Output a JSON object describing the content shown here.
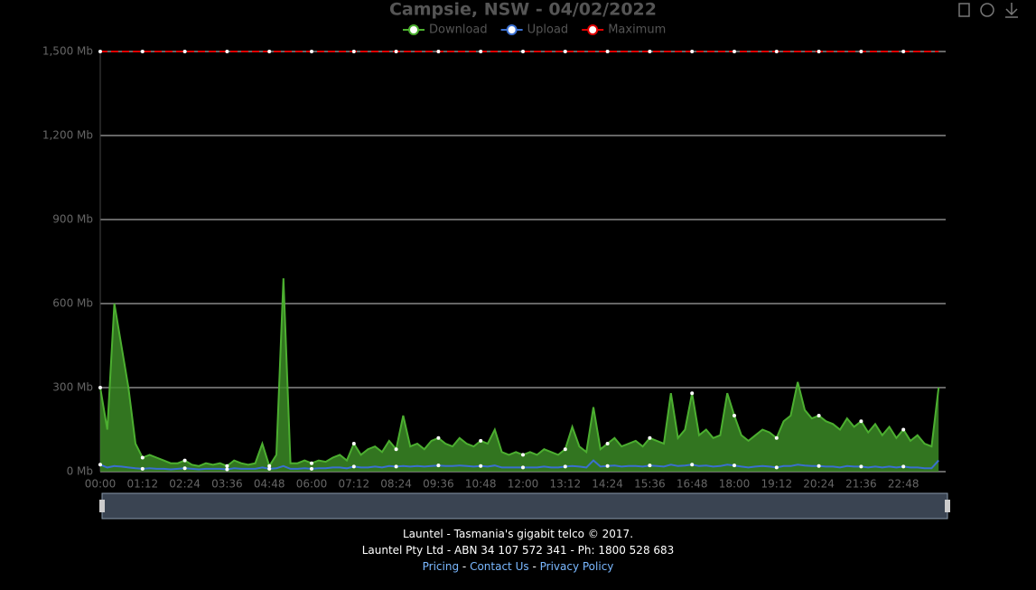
{
  "chart_data": {
    "type": "line",
    "title": "Campsie, NSW - 04/02/2022",
    "categories": [
      "00:00",
      null,
      null,
      null,
      null,
      null,
      "01:12",
      null,
      null,
      null,
      null,
      null,
      "02:24",
      null,
      null,
      null,
      null,
      null,
      "03:36",
      null,
      null,
      null,
      null,
      null,
      "04:48",
      null,
      null,
      null,
      null,
      null,
      "06:00",
      null,
      null,
      null,
      null,
      null,
      "07:12",
      null,
      null,
      null,
      null,
      null,
      "08:24",
      null,
      null,
      null,
      null,
      null,
      "09:36",
      null,
      null,
      null,
      null,
      null,
      "10:48",
      null,
      null,
      null,
      null,
      null,
      "12:00",
      null,
      null,
      null,
      null,
      null,
      "13:12",
      null,
      null,
      null,
      null,
      null,
      "14:24",
      null,
      null,
      null,
      null,
      null,
      "15:36",
      null,
      null,
      null,
      null,
      null,
      "16:48",
      null,
      null,
      null,
      null,
      null,
      "18:00",
      null,
      null,
      null,
      null,
      null,
      "19:12",
      null,
      null,
      null,
      null,
      null,
      "20:24",
      null,
      null,
      null,
      null,
      null,
      "21:36",
      null,
      null,
      null,
      null,
      null,
      "22:48",
      null,
      null,
      null,
      null,
      null
    ],
    "series": [
      {
        "name": "Download",
        "color": "#4caf30",
        "area": true,
        "values": [
          300,
          150,
          600,
          450,
          300,
          100,
          50,
          60,
          50,
          40,
          30,
          30,
          40,
          25,
          20,
          30,
          25,
          30,
          20,
          40,
          30,
          25,
          30,
          100,
          20,
          60,
          690,
          30,
          30,
          40,
          30,
          40,
          35,
          50,
          60,
          40,
          100,
          60,
          80,
          90,
          70,
          110,
          80,
          200,
          90,
          100,
          80,
          110,
          120,
          100,
          90,
          120,
          100,
          90,
          110,
          100,
          150,
          70,
          60,
          70,
          60,
          70,
          60,
          80,
          70,
          60,
          80,
          160,
          90,
          70,
          230,
          80,
          100,
          120,
          90,
          100,
          110,
          90,
          120,
          110,
          100,
          280,
          120,
          150,
          280,
          130,
          150,
          120,
          130,
          280,
          200,
          130,
          110,
          130,
          150,
          140,
          120,
          180,
          200,
          320,
          220,
          190,
          200,
          180,
          170,
          150,
          190,
          160,
          180,
          140,
          170,
          130,
          160,
          120,
          150,
          110,
          130,
          100,
          90,
          300
        ]
      },
      {
        "name": "Upload",
        "color": "#3a6fd0",
        "area": false,
        "values": [
          25,
          15,
          20,
          18,
          15,
          12,
          10,
          12,
          10,
          10,
          8,
          10,
          12,
          10,
          8,
          10,
          10,
          10,
          8,
          12,
          10,
          10,
          10,
          15,
          10,
          12,
          20,
          10,
          10,
          12,
          10,
          12,
          12,
          15,
          15,
          12,
          18,
          15,
          15,
          18,
          15,
          20,
          18,
          20,
          18,
          20,
          18,
          20,
          22,
          20,
          20,
          22,
          20,
          18,
          20,
          18,
          22,
          15,
          15,
          15,
          15,
          15,
          15,
          18,
          15,
          15,
          18,
          20,
          18,
          15,
          40,
          18,
          20,
          22,
          18,
          20,
          20,
          18,
          22,
          20,
          18,
          25,
          20,
          22,
          25,
          20,
          22,
          18,
          20,
          25,
          22,
          18,
          15,
          18,
          20,
          18,
          15,
          20,
          20,
          25,
          22,
          20,
          20,
          18,
          18,
          15,
          20,
          18,
          18,
          15,
          18,
          15,
          18,
          15,
          18,
          15,
          15,
          12,
          12,
          40
        ]
      },
      {
        "name": "Maximum",
        "color": "#e00000",
        "area": false,
        "dashed": true,
        "values": [
          1500,
          1500,
          1500,
          1500,
          1500,
          1500,
          1500,
          1500,
          1500,
          1500,
          1500,
          1500,
          1500,
          1500,
          1500,
          1500,
          1500,
          1500,
          1500,
          1500,
          1500,
          1500,
          1500,
          1500,
          1500,
          1500,
          1500,
          1500,
          1500,
          1500,
          1500,
          1500,
          1500,
          1500,
          1500,
          1500,
          1500,
          1500,
          1500,
          1500,
          1500,
          1500,
          1500,
          1500,
          1500,
          1500,
          1500,
          1500,
          1500,
          1500,
          1500,
          1500,
          1500,
          1500,
          1500,
          1500,
          1500,
          1500,
          1500,
          1500,
          1500,
          1500,
          1500,
          1500,
          1500,
          1500,
          1500,
          1500,
          1500,
          1500,
          1500,
          1500,
          1500,
          1500,
          1500,
          1500,
          1500,
          1500,
          1500,
          1500,
          1500,
          1500,
          1500,
          1500,
          1500,
          1500,
          1500,
          1500,
          1500,
          1500,
          1500,
          1500,
          1500,
          1500,
          1500,
          1500,
          1500,
          1500,
          1500,
          1500,
          1500,
          1500,
          1500,
          1500,
          1500,
          1500,
          1500,
          1500,
          1500,
          1500,
          1500,
          1500,
          1500,
          1500,
          1500,
          1500,
          1500,
          1500,
          1500,
          1500
        ]
      }
    ],
    "ylim": [
      0,
      1500
    ],
    "yticks": [
      {
        "value": 0,
        "label": "0 Mb"
      },
      {
        "value": 300,
        "label": "300 Mb"
      },
      {
        "value": 600,
        "label": "600 Mb"
      },
      {
        "value": 900,
        "label": "900 Mb"
      },
      {
        "value": 1200,
        "label": "1,200 Mb"
      },
      {
        "value": 1500,
        "label": "1,500 Mb"
      }
    ],
    "grid": true
  },
  "footer": {
    "line1": "Launtel - Tasmania's gigabit telco © 2017.",
    "line2": "Launtel Pty Ltd - ABN 34 107 572 341 - Ph: 1800 528 683",
    "links": [
      "Pricing",
      "Contact Us",
      "Privacy Policy"
    ],
    "separator": "-"
  }
}
